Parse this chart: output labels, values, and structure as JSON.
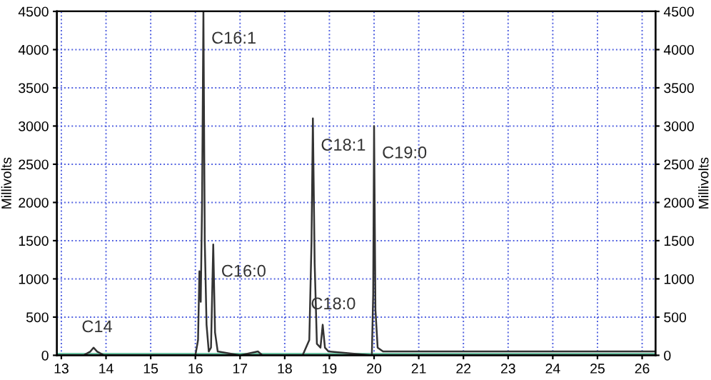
{
  "chart_data": {
    "type": "line",
    "ylabel": "Millivolts",
    "y2label": "Millivolts",
    "xlim": [
      12.9,
      26.3
    ],
    "xticks": [
      13,
      14,
      15,
      16,
      17,
      18,
      19,
      20,
      21,
      22,
      23,
      24,
      25,
      26
    ],
    "ylim": [
      0,
      4500
    ],
    "yticks": [
      0,
      500,
      1000,
      1500,
      2000,
      2500,
      3000,
      3500,
      4000,
      4500
    ],
    "y2lim": [
      0,
      4500
    ],
    "y2ticks": [
      0,
      500,
      1000,
      1500,
      2000,
      2500,
      3000,
      3500,
      4000,
      4500
    ],
    "grid": true,
    "marker": "none",
    "line_style": "solid",
    "series": [
      {
        "color": "#6bbfa0",
        "x": [
          12.9,
          14,
          15,
          16,
          17,
          18,
          19,
          20,
          21,
          22,
          23,
          24,
          25,
          26,
          26.3
        ],
        "values": [
          0,
          0,
          0,
          0,
          0,
          0,
          0,
          0,
          0,
          0,
          0,
          0,
          0,
          0,
          0
        ]
      },
      {
        "color": "#333333",
        "x": [
          12.9,
          13.5,
          13.65,
          13.72,
          13.8,
          13.95,
          14.5,
          15.5,
          16.0,
          16.06,
          16.09,
          16.12,
          16.15,
          16.18,
          16.21,
          16.25,
          16.3,
          16.35,
          16.4,
          16.44,
          16.5,
          17.0,
          17.4,
          17.5,
          18.4,
          18.55,
          18.6,
          18.63,
          18.67,
          18.72,
          18.8,
          18.85,
          18.9,
          18.98,
          19.95,
          19.98,
          20.0,
          20.03,
          20.08,
          20.2,
          21,
          22,
          23,
          24,
          25,
          26,
          26.3
        ],
        "values": [
          0,
          0,
          50,
          100,
          50,
          0,
          0,
          0,
          0,
          200,
          1100,
          700,
          2000,
          4500,
          1500,
          400,
          50,
          100,
          1450,
          300,
          50,
          0,
          50,
          0,
          0,
          200,
          1500,
          3100,
          1200,
          150,
          100,
          400,
          100,
          50,
          0,
          800,
          3000,
          600,
          100,
          50,
          50,
          50,
          50,
          50,
          50,
          50,
          50
        ]
      }
    ],
    "annotations": [
      {
        "text": "C14",
        "x": 13.72,
        "y": 100
      },
      {
        "text": "C16:1",
        "x": 16.18,
        "y": 4500
      },
      {
        "text": "C16:0",
        "x": 16.4,
        "y": 1450
      },
      {
        "text": "C18:1",
        "x": 18.63,
        "y": 3100
      },
      {
        "text": "C18:0",
        "x": 18.85,
        "y": 400
      },
      {
        "text": "C19:0",
        "x": 20.0,
        "y": 3000
      }
    ]
  }
}
